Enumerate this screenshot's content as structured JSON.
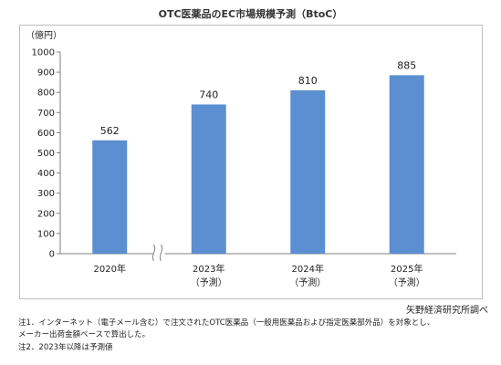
{
  "chart_data": {
    "type": "bar",
    "title": "OTC医薬品のEC市場規模予測（BtoC）",
    "ylabel": "（億円）",
    "ylim": [
      0,
      1000
    ],
    "yticks": [
      0,
      100,
      200,
      300,
      400,
      500,
      600,
      700,
      800,
      900,
      1000
    ],
    "categories": [
      {
        "label": "2020年",
        "sublabel": ""
      },
      {
        "label": "2023年",
        "sublabel": "（予測）"
      },
      {
        "label": "2024年",
        "sublabel": "（予測）"
      },
      {
        "label": "2025年",
        "sublabel": "（予測）"
      }
    ],
    "values": [
      562,
      740,
      810,
      885
    ],
    "data_labels": [
      "562",
      "740",
      "810",
      "885"
    ],
    "axis_break": "between-first-and-second",
    "grid": false,
    "legend": "none",
    "bar_color": "#5b8fd1"
  },
  "source": "矢野経済研究所調べ",
  "notes": {
    "note1_line1": "注1．インターネット（電子メール含む）で注文されたOTC医薬品（一般用医薬品および指定医薬部外品）を対象とし、",
    "note1_line2": "メーカー出荷金額ベースで算出した。",
    "note2": "注2．2023年以降は予測値"
  }
}
